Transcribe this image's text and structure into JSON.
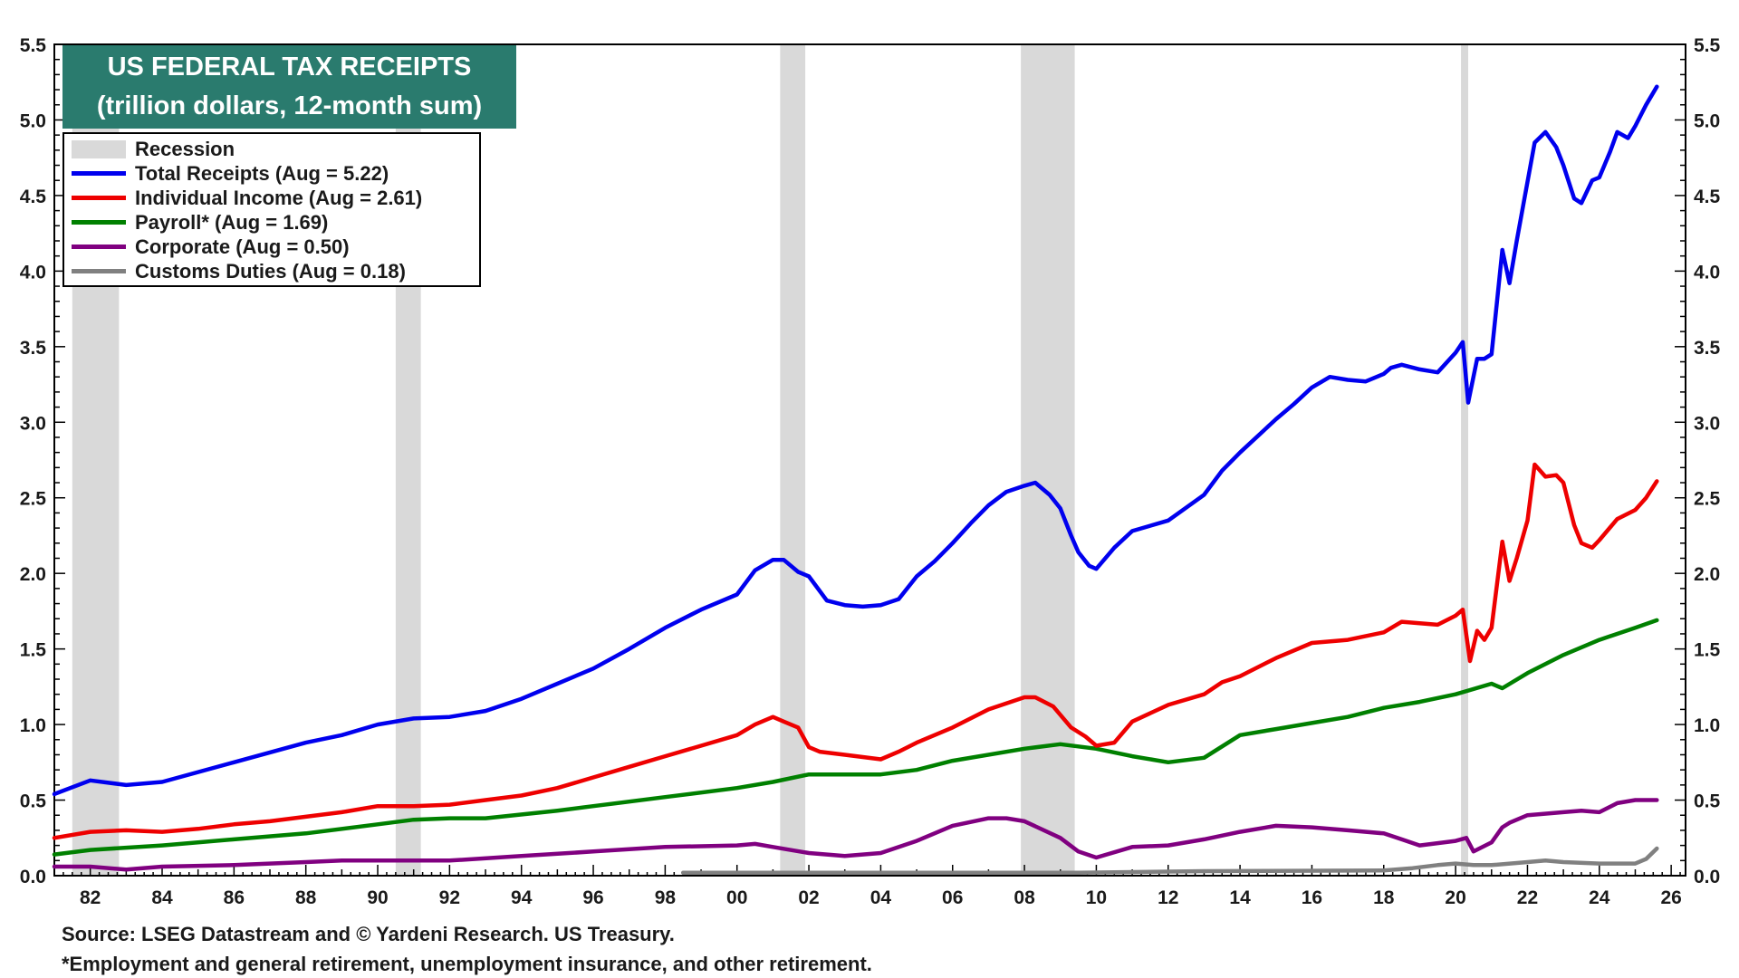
{
  "chart_data": {
    "type": "line",
    "title": "US FEDERAL TAX RECEIPTS",
    "subtitle": "(trillion dollars, 12-month sum)",
    "xlabel": "",
    "ylabel": "",
    "xlim": [
      1981.0,
      2026.4
    ],
    "ylim": [
      0.0,
      5.5
    ],
    "x_tick_labels": [
      "82",
      "84",
      "86",
      "88",
      "90",
      "92",
      "94",
      "96",
      "98",
      "00",
      "02",
      "04",
      "06",
      "08",
      "10",
      "12",
      "14",
      "16",
      "18",
      "20",
      "22",
      "24",
      "26"
    ],
    "x_tick_values": [
      1982,
      1984,
      1986,
      1988,
      1990,
      1992,
      1994,
      1996,
      1998,
      2000,
      2002,
      2004,
      2006,
      2008,
      2010,
      2012,
      2014,
      2016,
      2018,
      2020,
      2022,
      2024,
      2026
    ],
    "y_tick_labels": [
      "0.0",
      "0.5",
      "1.0",
      "1.5",
      "2.0",
      "2.5",
      "3.0",
      "3.5",
      "4.0",
      "4.5",
      "5.0",
      "5.5"
    ],
    "y_tick_values": [
      0.0,
      0.5,
      1.0,
      1.5,
      2.0,
      2.5,
      3.0,
      3.5,
      4.0,
      4.5,
      5.0,
      5.5
    ],
    "grid": false,
    "legend_position": "top-left",
    "recessions": [
      [
        1981.5,
        1982.8
      ],
      [
        1990.5,
        1991.2
      ],
      [
        2001.2,
        2001.9
      ],
      [
        2007.9,
        2009.4
      ],
      [
        2020.15,
        2020.35
      ]
    ],
    "recession_label": "Recession",
    "recession_color": "#d9d9d9",
    "series": [
      {
        "name": "Total Receipts (Aug = 5.22)",
        "color": "#0000ee",
        "x": [
          1981.0,
          1982.0,
          1983.0,
          1984.0,
          1986.0,
          1988.0,
          1989.0,
          1990.0,
          1991.0,
          1992.0,
          1993.0,
          1994.0,
          1995.0,
          1996.0,
          1997.0,
          1998.0,
          1999.0,
          2000.0,
          2000.5,
          2001.0,
          2001.3,
          2001.7,
          2002.0,
          2002.5,
          2003.0,
          2003.5,
          2004.0,
          2004.5,
          2005.0,
          2005.5,
          2006.0,
          2006.5,
          2007.0,
          2007.5,
          2008.0,
          2008.3,
          2008.7,
          2009.0,
          2009.3,
          2009.5,
          2009.8,
          2010.0,
          2010.5,
          2011.0,
          2012.0,
          2013.0,
          2013.5,
          2014.0,
          2015.0,
          2015.5,
          2016.0,
          2016.5,
          2017.0,
          2017.5,
          2018.0,
          2018.2,
          2018.5,
          2019.0,
          2019.5,
          2020.0,
          2020.2,
          2020.35,
          2020.6,
          2020.8,
          2021.0,
          2021.3,
          2021.5,
          2021.7,
          2021.9,
          2022.2,
          2022.5,
          2022.8,
          2023.0,
          2023.3,
          2023.5,
          2023.8,
          2024.0,
          2024.3,
          2024.5,
          2024.8,
          2025.0,
          2025.3,
          2025.6
        ],
        "values": [
          0.54,
          0.63,
          0.6,
          0.62,
          0.75,
          0.88,
          0.93,
          1.0,
          1.04,
          1.05,
          1.09,
          1.17,
          1.27,
          1.37,
          1.5,
          1.64,
          1.76,
          1.86,
          2.02,
          2.09,
          2.09,
          2.01,
          1.98,
          1.82,
          1.79,
          1.78,
          1.79,
          1.83,
          1.98,
          2.08,
          2.2,
          2.33,
          2.45,
          2.54,
          2.58,
          2.6,
          2.52,
          2.43,
          2.25,
          2.14,
          2.05,
          2.03,
          2.17,
          2.28,
          2.35,
          2.52,
          2.68,
          2.8,
          3.02,
          3.12,
          3.23,
          3.3,
          3.28,
          3.27,
          3.32,
          3.36,
          3.38,
          3.35,
          3.33,
          3.46,
          3.53,
          3.13,
          3.42,
          3.42,
          3.45,
          4.14,
          3.92,
          4.2,
          4.46,
          4.85,
          4.92,
          4.82,
          4.7,
          4.48,
          4.45,
          4.6,
          4.62,
          4.79,
          4.92,
          4.88,
          4.96,
          5.1,
          5.22
        ]
      },
      {
        "name": "Individual Income (Aug = 2.61)",
        "color": "#ee0000",
        "x": [
          1981.0,
          1982.0,
          1983.0,
          1984.0,
          1985.0,
          1986.0,
          1987.0,
          1988.0,
          1989.0,
          1990.0,
          1991.0,
          1992.0,
          1993.0,
          1994.0,
          1995.0,
          1996.0,
          1997.0,
          1998.0,
          1999.0,
          2000.0,
          2000.5,
          2001.0,
          2001.3,
          2001.7,
          2002.0,
          2002.3,
          2003.0,
          2004.0,
          2004.5,
          2005.0,
          2006.0,
          2007.0,
          2008.0,
          2008.3,
          2008.8,
          2009.3,
          2009.7,
          2010.0,
          2010.5,
          2011.0,
          2012.0,
          2013.0,
          2013.5,
          2014.0,
          2015.0,
          2016.0,
          2017.0,
          2018.0,
          2018.5,
          2019.0,
          2019.5,
          2020.0,
          2020.2,
          2020.4,
          2020.6,
          2020.8,
          2021.0,
          2021.3,
          2021.5,
          2021.7,
          2022.0,
          2022.2,
          2022.5,
          2022.8,
          2023.0,
          2023.3,
          2023.5,
          2023.8,
          2024.0,
          2024.5,
          2025.0,
          2025.3,
          2025.6
        ],
        "values": [
          0.25,
          0.29,
          0.3,
          0.29,
          0.31,
          0.34,
          0.36,
          0.39,
          0.42,
          0.46,
          0.46,
          0.47,
          0.5,
          0.53,
          0.58,
          0.65,
          0.72,
          0.79,
          0.86,
          0.93,
          1.0,
          1.05,
          1.02,
          0.98,
          0.85,
          0.82,
          0.8,
          0.77,
          0.82,
          0.88,
          0.98,
          1.1,
          1.18,
          1.18,
          1.12,
          0.98,
          0.92,
          0.86,
          0.88,
          1.02,
          1.13,
          1.2,
          1.28,
          1.32,
          1.44,
          1.54,
          1.56,
          1.61,
          1.68,
          1.67,
          1.66,
          1.72,
          1.76,
          1.42,
          1.62,
          1.56,
          1.64,
          2.21,
          1.95,
          2.1,
          2.35,
          2.72,
          2.64,
          2.65,
          2.6,
          2.32,
          2.2,
          2.17,
          2.22,
          2.36,
          2.42,
          2.5,
          2.61
        ]
      },
      {
        "name": "Payroll* (Aug = 1.69)",
        "color": "#008000",
        "x": [
          1981.0,
          1982.0,
          1984.0,
          1986.0,
          1988.0,
          1990.0,
          1991.0,
          1992.0,
          1993.0,
          1995.0,
          1996.0,
          1998.0,
          2000.0,
          2001.0,
          2002.0,
          2004.0,
          2005.0,
          2006.0,
          2008.0,
          2009.0,
          2010.0,
          2011.0,
          2012.0,
          2013.0,
          2014.0,
          2015.0,
          2016.0,
          2017.0,
          2018.0,
          2019.0,
          2020.0,
          2021.0,
          2021.3,
          2022.0,
          2023.0,
          2024.0,
          2025.0,
          2025.6
        ],
        "values": [
          0.14,
          0.17,
          0.2,
          0.24,
          0.28,
          0.34,
          0.37,
          0.38,
          0.38,
          0.43,
          0.46,
          0.52,
          0.58,
          0.62,
          0.67,
          0.67,
          0.7,
          0.76,
          0.84,
          0.87,
          0.84,
          0.79,
          0.75,
          0.78,
          0.93,
          0.97,
          1.01,
          1.05,
          1.11,
          1.15,
          1.2,
          1.27,
          1.24,
          1.34,
          1.46,
          1.56,
          1.64,
          1.69
        ]
      },
      {
        "name": "Corporate (Aug = 0.50)",
        "color": "#800080",
        "x": [
          1981.0,
          1982.0,
          1983.0,
          1984.0,
          1986.0,
          1988.0,
          1989.0,
          1990.0,
          1992.0,
          1994.0,
          1996.0,
          1998.0,
          2000.0,
          2000.5,
          2001.0,
          2002.0,
          2003.0,
          2004.0,
          2005.0,
          2006.0,
          2007.0,
          2007.5,
          2008.0,
          2009.0,
          2009.5,
          2010.0,
          2011.0,
          2012.0,
          2013.0,
          2014.0,
          2015.0,
          2016.0,
          2017.0,
          2018.0,
          2018.5,
          2019.0,
          2020.0,
          2020.3,
          2020.5,
          2021.0,
          2021.3,
          2021.5,
          2022.0,
          2023.0,
          2023.5,
          2024.0,
          2024.5,
          2025.0,
          2025.6
        ],
        "values": [
          0.06,
          0.06,
          0.04,
          0.06,
          0.07,
          0.09,
          0.1,
          0.1,
          0.1,
          0.13,
          0.16,
          0.19,
          0.2,
          0.21,
          0.19,
          0.15,
          0.13,
          0.15,
          0.23,
          0.33,
          0.38,
          0.38,
          0.36,
          0.25,
          0.16,
          0.12,
          0.19,
          0.2,
          0.24,
          0.29,
          0.33,
          0.32,
          0.3,
          0.28,
          0.24,
          0.2,
          0.23,
          0.25,
          0.16,
          0.22,
          0.32,
          0.35,
          0.4,
          0.42,
          0.43,
          0.42,
          0.48,
          0.5,
          0.5
        ]
      },
      {
        "name": "Customs Duties (Aug = 0.18)",
        "color": "#808080",
        "x": [
          1998.5,
          2005.0,
          2009.5,
          2013.0,
          2018.0,
          2018.8,
          2019.5,
          2020.0,
          2020.5,
          2021.0,
          2022.0,
          2022.5,
          2023.0,
          2024.0,
          2025.0,
          2025.3,
          2025.6
        ],
        "values": [
          0.02,
          0.02,
          0.02,
          0.03,
          0.035,
          0.05,
          0.07,
          0.08,
          0.07,
          0.07,
          0.09,
          0.1,
          0.09,
          0.08,
          0.08,
          0.11,
          0.18
        ]
      }
    ]
  },
  "footnotes": {
    "source": "Source: LSEG Datastream and © Yardeni Research. US Treasury.",
    "note": "*Employment and general  retirement, unemployment insurance, and other retirement."
  }
}
